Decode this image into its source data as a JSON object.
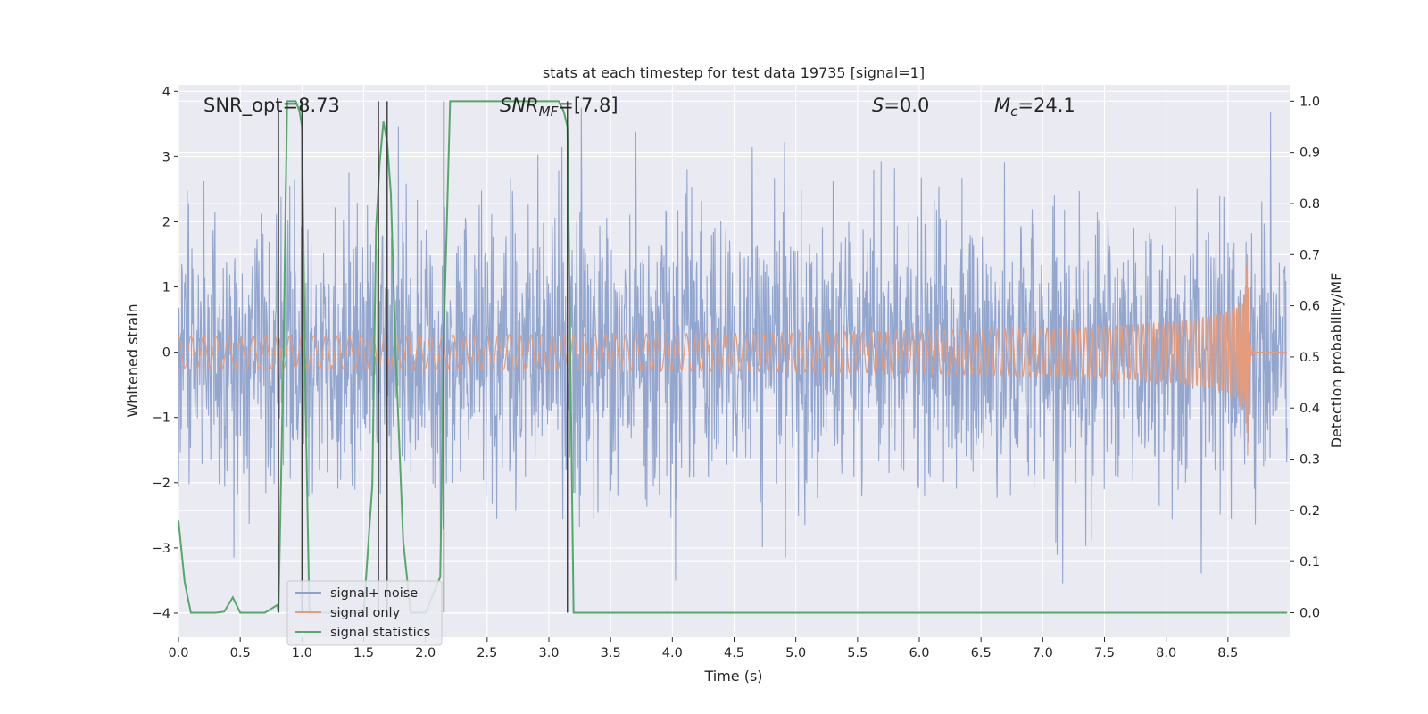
{
  "chart_data": {
    "type": "line",
    "title": "stats at each timestep for test data 19735 [signal=1]",
    "xlabel": "Time (s)",
    "ylabel_left": "Whitened strain",
    "ylabel_right": "Detection probability/MF",
    "xlim": [
      0.0,
      9.0
    ],
    "ylim_left": [
      -4.37,
      4.1
    ],
    "ylim_right": [
      -0.048,
      1.032
    ],
    "x_ticks": [
      "0.0",
      "0.5",
      "1.0",
      "1.5",
      "2.0",
      "2.5",
      "3.0",
      "3.5",
      "4.0",
      "4.5",
      "5.0",
      "5.5",
      "6.0",
      "6.5",
      "7.0",
      "7.5",
      "8.0",
      "8.5"
    ],
    "y_ticks_left": [
      "4",
      "3",
      "2",
      "1",
      "0",
      "−1",
      "−2",
      "−3",
      "−4"
    ],
    "y_ticks_right": [
      "1.0",
      "0.9",
      "0.8",
      "0.7",
      "0.6",
      "0.5",
      "0.4",
      "0.3",
      "0.2",
      "0.1",
      "0.0"
    ],
    "grid": true,
    "legend_position": "lower-left",
    "annotations": {
      "snr_opt": "SNR_opt=8.73",
      "snr_mf_base": "SNR",
      "snr_mf_sub": "MF",
      "snr_mf_value": "=[7.8]",
      "s_var": "S",
      "s_value": "=0.0",
      "mc_var": "M",
      "mc_sub": "c",
      "mc_value": "=24.1"
    },
    "vertical_markers_x": [
      0.81,
      1.0,
      1.62,
      1.69,
      2.15,
      3.15
    ],
    "series": [
      {
        "name": "signal+ noise",
        "color": "#8ea2cb",
        "axis": "left",
        "noise_sigma": 1.0,
        "t_start": 0.0,
        "t_end": 8.98
      },
      {
        "name": "signal only",
        "color": "#e39c7d",
        "axis": "left",
        "chirp_merger_time": 8.66,
        "peak_amplitude": 1.85,
        "t_start": 0.0,
        "t_end": 8.98
      },
      {
        "name": "signal statistics",
        "color": "#55a868",
        "axis": "right",
        "x": [
          0.0,
          0.05,
          0.1,
          0.2,
          0.3,
          0.37,
          0.44,
          0.5,
          0.6,
          0.7,
          0.8,
          0.81,
          0.85,
          0.88,
          0.95,
          0.98,
          1.0,
          1.03,
          1.06,
          1.1,
          1.5,
          1.57,
          1.6,
          1.63,
          1.66,
          1.69,
          1.72,
          1.76,
          1.82,
          1.88,
          2.0,
          2.12,
          2.15,
          2.2,
          2.5,
          3.0,
          3.08,
          3.12,
          3.15,
          3.2,
          3.3,
          4.0,
          5.0,
          6.0,
          7.0,
          8.0,
          8.98
        ],
        "y": [
          0.18,
          0.06,
          0.0,
          0.0,
          0.0,
          0.002,
          0.03,
          0.0,
          0.0,
          0.0,
          0.015,
          0.0,
          0.5,
          1.0,
          1.0,
          0.98,
          0.95,
          0.4,
          0.0,
          0.0,
          0.0,
          0.25,
          0.75,
          0.88,
          0.96,
          0.92,
          0.82,
          0.5,
          0.14,
          0.0,
          0.0,
          0.07,
          0.55,
          1.0,
          1.0,
          1.0,
          1.0,
          0.98,
          0.95,
          0.0,
          0.0,
          0.0,
          0.0,
          0.0,
          0.0,
          0.0,
          0.0
        ]
      }
    ]
  }
}
